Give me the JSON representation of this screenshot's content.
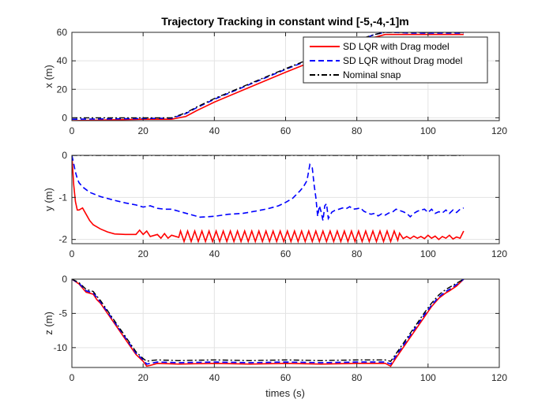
{
  "chart_data": [
    {
      "type": "line",
      "title": "Trajectory Tracking in constant wind [-5,-4,-1]m",
      "xlabel": "",
      "ylabel": "x (m)",
      "xlim": [
        0,
        120
      ],
      "ylim": [
        -2,
        60
      ],
      "xticks": [
        0,
        20,
        40,
        60,
        80,
        100,
        120
      ],
      "yticks": [
        0,
        20,
        40,
        60
      ],
      "grid": true,
      "legend": "top-right",
      "series": [
        {
          "name": "SD LQR with Drag model",
          "color": "#ff0000",
          "style": "solid",
          "x": [
            0,
            10,
            20,
            28,
            32,
            35,
            40,
            50,
            60,
            70,
            80,
            85,
            88,
            90,
            95,
            100,
            105,
            110
          ],
          "y": [
            -2,
            -1.5,
            -1,
            -1,
            1,
            5,
            11,
            21.5,
            32,
            42,
            51.5,
            56.5,
            58.5,
            58.5,
            58.5,
            58.5,
            58.5,
            58.5
          ]
        },
        {
          "name": "SD LQR without Drag model",
          "color": "#0000ff",
          "style": "dashed",
          "x": [
            0,
            10,
            20,
            28,
            32,
            35,
            40,
            50,
            60,
            70,
            80,
            85,
            88,
            90,
            95,
            100,
            105,
            110
          ],
          "y": [
            -1,
            -0.8,
            -0.5,
            -0.3,
            3,
            7,
            13,
            23.5,
            34,
            44,
            54,
            58.5,
            60,
            60,
            59.5,
            59.5,
            59.5,
            59.5
          ]
        },
        {
          "name": "Nominal snap",
          "color": "#000000",
          "style": "dashdot",
          "x": [
            0,
            10,
            20,
            28,
            32,
            35,
            40,
            50,
            60,
            70,
            80,
            85,
            88,
            90,
            95,
            100,
            105,
            110
          ],
          "y": [
            0,
            0,
            0,
            0,
            3.5,
            7.5,
            13.5,
            24,
            34.5,
            44.5,
            54.5,
            58.5,
            60,
            60,
            60,
            60,
            60,
            60
          ]
        }
      ]
    },
    {
      "type": "line",
      "title": "",
      "xlabel": "",
      "ylabel": "y (m)",
      "xlim": [
        0,
        120
      ],
      "ylim": [
        -2.1,
        0
      ],
      "xticks": [
        0,
        20,
        40,
        60,
        80,
        100,
        120
      ],
      "yticks": [
        -2,
        -1,
        0
      ],
      "grid": true,
      "series": [
        {
          "name": "SD LQR with Drag model",
          "color": "#ff0000",
          "style": "solid",
          "x": [
            0,
            0.5,
            1,
            1.5,
            2,
            3,
            4,
            5,
            6,
            7,
            8,
            10,
            12,
            15,
            18,
            19,
            20,
            21,
            22,
            24,
            25,
            26,
            27,
            28,
            30,
            30.5,
            31.5,
            32.5,
            33.5,
            34.5,
            35.5,
            36.5,
            37.5,
            38.5,
            39.5,
            40.5,
            41.5,
            42.5,
            43.5,
            44.5,
            45.5,
            46.5,
            47.5,
            48.5,
            49.5,
            50.5,
            51.5,
            52.5,
            53.5,
            54.5,
            55.5,
            56.5,
            57.5,
            58.5,
            59.5,
            60.5,
            61.5,
            62.5,
            63.5,
            64.5,
            65.5,
            66.5,
            67.5,
            68.5,
            69.5,
            70.5,
            71.5,
            72.5,
            73.5,
            74.5,
            75.5,
            76.5,
            77.5,
            78.5,
            79.5,
            80.5,
            81.5,
            82.5,
            83.5,
            84.5,
            85.5,
            86.5,
            87.5,
            88.5,
            89.5,
            90.5,
            91.5,
            92,
            93,
            94,
            95,
            96,
            97,
            98,
            99,
            100,
            101,
            102,
            103,
            104,
            105,
            106,
            107,
            108,
            109,
            110
          ],
          "y": [
            0,
            -0.7,
            -1.1,
            -1.3,
            -1.3,
            -1.25,
            -1.4,
            -1.55,
            -1.65,
            -1.7,
            -1.75,
            -1.82,
            -1.87,
            -1.88,
            -1.88,
            -1.78,
            -1.88,
            -1.8,
            -1.93,
            -1.88,
            -1.97,
            -1.86,
            -1.97,
            -1.9,
            -1.95,
            -1.8,
            -2.05,
            -1.8,
            -2.05,
            -1.8,
            -2.05,
            -1.8,
            -2.05,
            -1.8,
            -2.05,
            -1.8,
            -2.05,
            -1.8,
            -2.05,
            -1.8,
            -2.05,
            -1.8,
            -2.05,
            -1.8,
            -2.05,
            -1.8,
            -2.05,
            -1.8,
            -2.05,
            -1.8,
            -2.05,
            -1.8,
            -2.05,
            -1.8,
            -2.05,
            -1.8,
            -2.05,
            -1.8,
            -2.05,
            -1.8,
            -2.05,
            -1.8,
            -2.05,
            -1.8,
            -2.05,
            -1.8,
            -2.05,
            -1.8,
            -2.05,
            -1.8,
            -2.05,
            -1.8,
            -2.05,
            -1.8,
            -2.05,
            -1.8,
            -2.05,
            -1.8,
            -2.05,
            -1.8,
            -2.05,
            -1.8,
            -2.05,
            -1.8,
            -2.05,
            -1.8,
            -2.02,
            -1.85,
            -1.98,
            -1.93,
            -1.98,
            -1.92,
            -1.97,
            -1.93,
            -1.98,
            -1.9,
            -1.97,
            -1.92,
            -2.0,
            -1.93,
            -1.97,
            -1.9,
            -1.99,
            -1.94,
            -1.97,
            -1.8
          ],
          "x_note": ""
        },
        {
          "name": "SD LQR without Drag model",
          "color": "#0000ff",
          "style": "dashed",
          "x": [
            0,
            0.5,
            1,
            1.5,
            2,
            3,
            5,
            8,
            12,
            15,
            18,
            20,
            22,
            24,
            26,
            28,
            30,
            33,
            36,
            40,
            44,
            48,
            52,
            55,
            58,
            60,
            62,
            64,
            65,
            66,
            66.8,
            67.5,
            68,
            68.5,
            69,
            69.5,
            70,
            70.5,
            71,
            71.5,
            72,
            73,
            74,
            75,
            76,
            77,
            78,
            79,
            80,
            81,
            82,
            83,
            84,
            85,
            86,
            87,
            88,
            89,
            90,
            91,
            92,
            93,
            94,
            95,
            96,
            97,
            98,
            99,
            100,
            101,
            102,
            103,
            104,
            105,
            106,
            107,
            108,
            109,
            110
          ],
          "y": [
            0,
            -0.2,
            -0.4,
            -0.55,
            -0.65,
            -0.75,
            -0.88,
            -0.98,
            -1.07,
            -1.13,
            -1.18,
            -1.23,
            -1.2,
            -1.26,
            -1.28,
            -1.28,
            -1.33,
            -1.4,
            -1.47,
            -1.45,
            -1.4,
            -1.38,
            -1.32,
            -1.27,
            -1.2,
            -1.12,
            -1.02,
            -0.85,
            -0.75,
            -0.6,
            -0.22,
            -0.3,
            -0.7,
            -1.0,
            -1.45,
            -1.2,
            -1.35,
            -1.55,
            -1.2,
            -1.15,
            -1.5,
            -1.35,
            -1.3,
            -1.28,
            -1.25,
            -1.27,
            -1.22,
            -1.28,
            -1.27,
            -1.25,
            -1.33,
            -1.37,
            -1.4,
            -1.38,
            -1.44,
            -1.39,
            -1.42,
            -1.37,
            -1.35,
            -1.28,
            -1.31,
            -1.34,
            -1.38,
            -1.46,
            -1.38,
            -1.33,
            -1.3,
            -1.28,
            -1.36,
            -1.28,
            -1.38,
            -1.34,
            -1.37,
            -1.3,
            -1.38,
            -1.3,
            -1.36,
            -1.28,
            -1.25
          ]
        },
        {
          "name": "Nominal snap",
          "color": "#000000",
          "style": "dashdot",
          "x": [
            0,
            110
          ],
          "y": [
            0,
            0
          ]
        }
      ]
    },
    {
      "type": "line",
      "title": "",
      "xlabel": "times (s)",
      "ylabel": "z (m)",
      "xlim": [
        0,
        120
      ],
      "ylim": [
        -12.9,
        0
      ],
      "xticks": [
        0,
        20,
        40,
        60,
        80,
        100,
        120
      ],
      "yticks": [
        -10,
        -5,
        0
      ],
      "grid": true,
      "series": [
        {
          "name": "SD LQR with Drag model",
          "color": "#ff0000",
          "style": "solid",
          "x": [
            0,
            2,
            4,
            6,
            7,
            8,
            10,
            12,
            14,
            16,
            18,
            20,
            21,
            22,
            24,
            30,
            40,
            50,
            60,
            70,
            80,
            88,
            89.5,
            91,
            93,
            95,
            97,
            99,
            101,
            103,
            105,
            106,
            108,
            110
          ],
          "y": [
            0,
            -0.7,
            -1.9,
            -2.2,
            -3,
            -3.5,
            -5,
            -6.5,
            -8,
            -9.5,
            -11,
            -12,
            -12.7,
            -12.6,
            -12.3,
            -12.4,
            -12.3,
            -12.4,
            -12.3,
            -12.4,
            -12.3,
            -12.3,
            -12.7,
            -11.5,
            -10,
            -8.5,
            -7,
            -5.5,
            -4,
            -2.8,
            -2,
            -1.7,
            -1,
            0
          ]
        },
        {
          "name": "SD LQR without Drag model",
          "color": "#0000ff",
          "style": "dashed",
          "x": [
            0,
            2,
            4,
            6,
            7,
            8,
            10,
            12,
            14,
            16,
            18,
            20,
            21,
            22,
            24,
            30,
            40,
            50,
            60,
            70,
            80,
            88,
            89.5,
            91,
            93,
            95,
            97,
            99,
            101,
            103,
            105,
            106,
            108,
            110
          ],
          "y": [
            0,
            -0.6,
            -1.7,
            -2.0,
            -2.7,
            -3.3,
            -4.8,
            -6.3,
            -7.8,
            -9.3,
            -10.8,
            -11.8,
            -12.4,
            -12.3,
            -12.1,
            -12.2,
            -12.1,
            -12.2,
            -12.1,
            -12.2,
            -12.1,
            -12.1,
            -12.4,
            -11.2,
            -9.7,
            -8.2,
            -6.7,
            -5.2,
            -3.8,
            -2.6,
            -1.8,
            -1.5,
            -0.8,
            0
          ]
        },
        {
          "name": "Nominal snap",
          "color": "#000000",
          "style": "dashdot",
          "x": [
            0,
            2,
            4,
            6,
            7,
            8,
            10,
            12,
            14,
            16,
            18,
            20,
            21,
            22,
            24,
            30,
            40,
            50,
            60,
            70,
            80,
            88,
            89.5,
            91,
            93,
            95,
            97,
            99,
            101,
            103,
            105,
            106,
            108,
            110
          ],
          "y": [
            0,
            -0.5,
            -1.5,
            -1.8,
            -2.5,
            -3.1,
            -4.6,
            -6.1,
            -7.6,
            -9.1,
            -10.6,
            -11.6,
            -12.0,
            -11.9,
            -11.8,
            -11.9,
            -11.8,
            -11.9,
            -11.8,
            -11.9,
            -11.8,
            -11.8,
            -12.0,
            -10.9,
            -9.4,
            -7.9,
            -6.4,
            -4.9,
            -3.5,
            -2.3,
            -1.5,
            -1.2,
            -0.6,
            0
          ]
        }
      ]
    }
  ]
}
